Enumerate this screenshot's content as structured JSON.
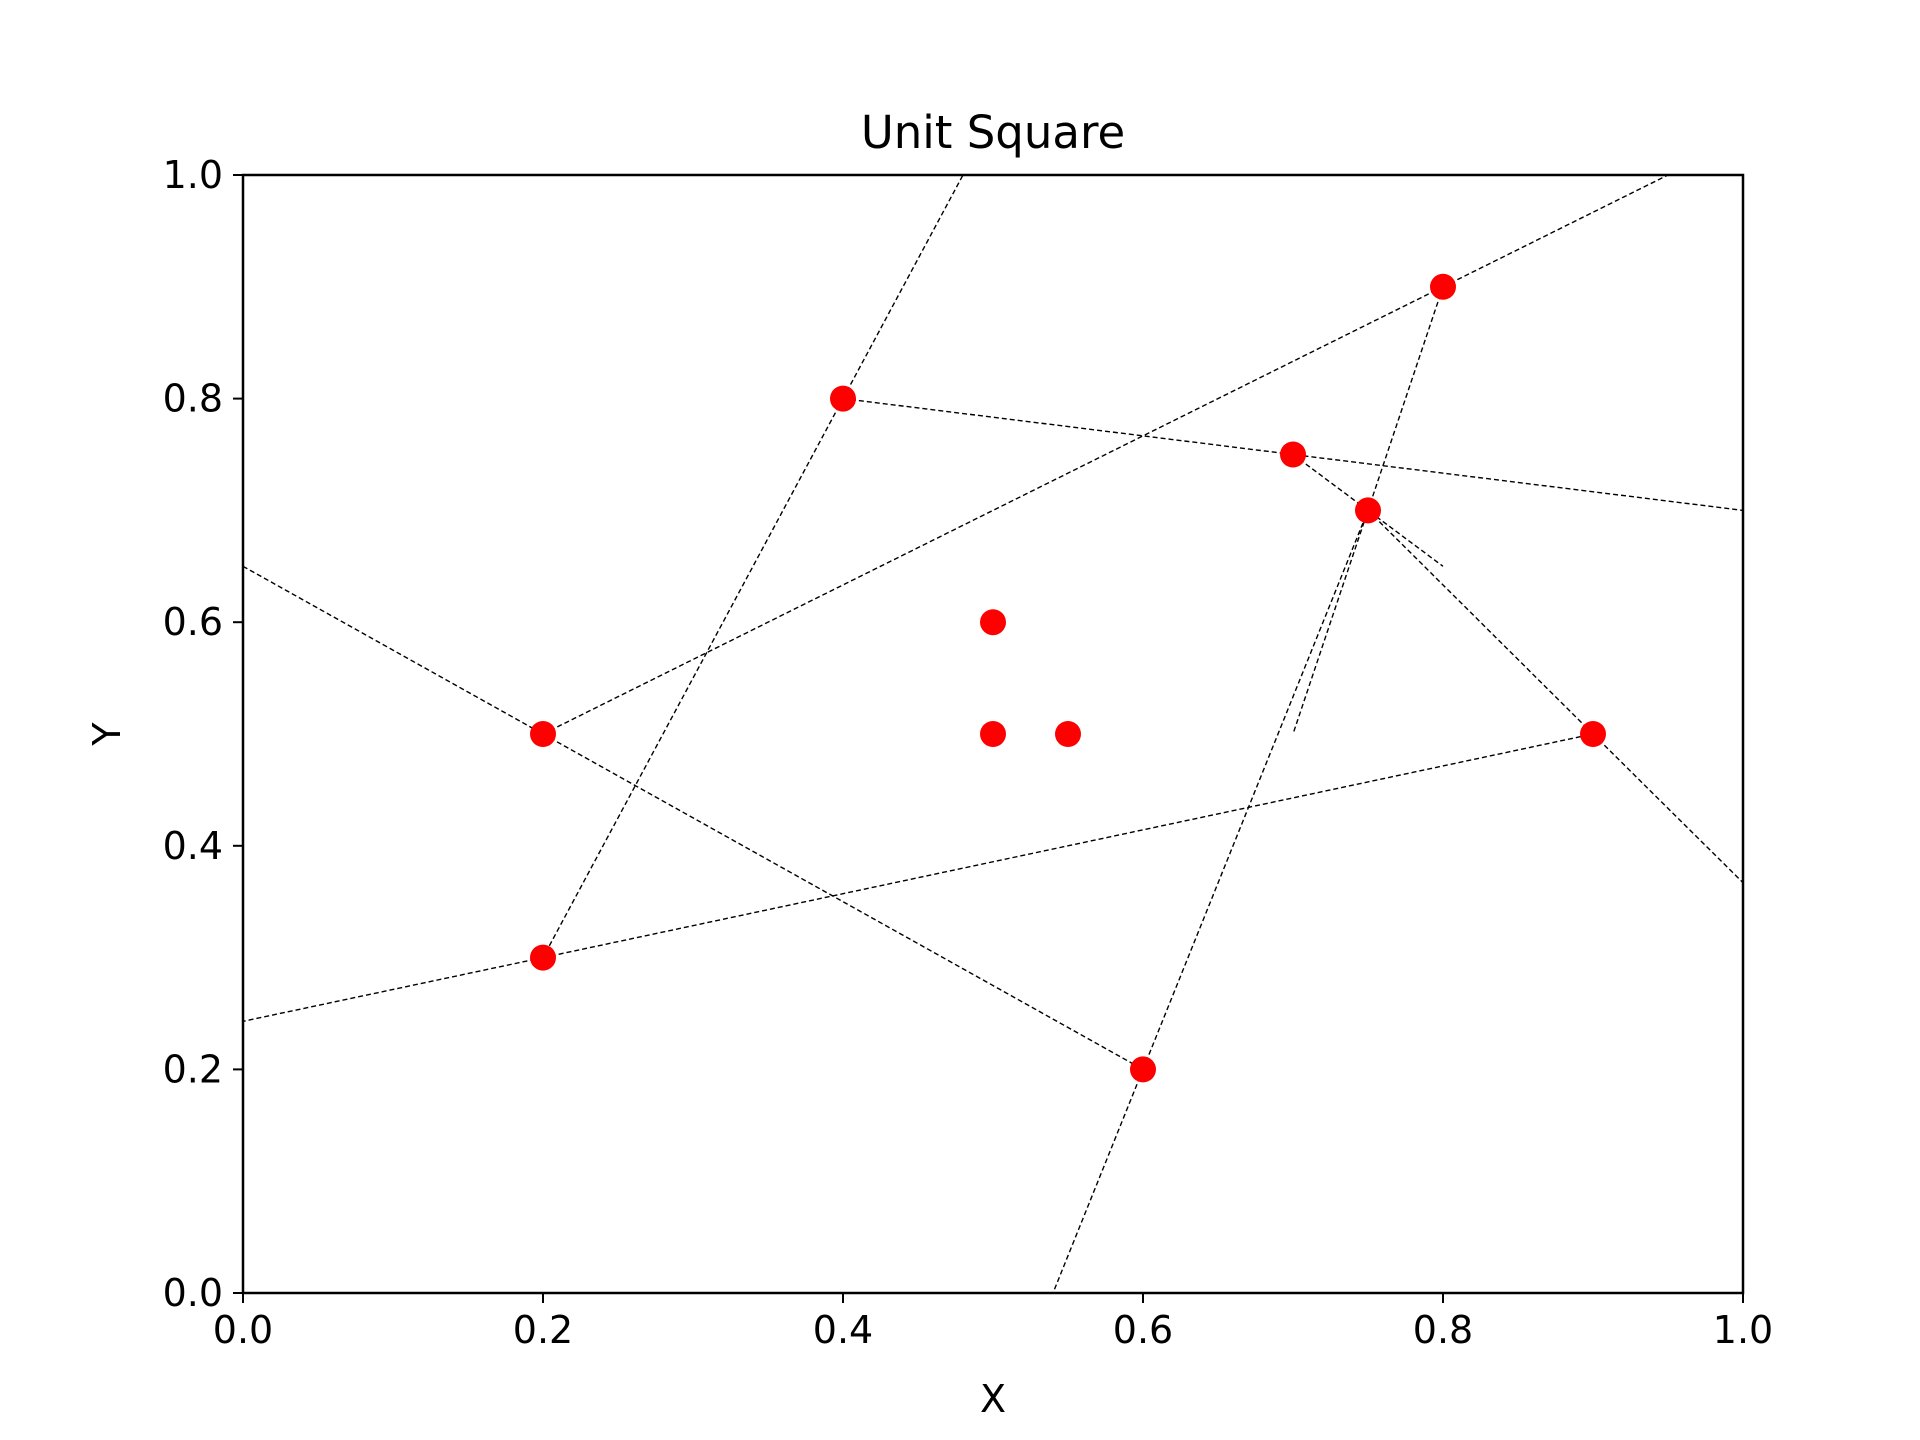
{
  "chart_data": {
    "type": "scatter",
    "title": "Unit Square",
    "xlabel": "X",
    "ylabel": "Y",
    "xlim": [
      0.0,
      1.0
    ],
    "ylim": [
      0.0,
      1.0
    ],
    "xticks": [
      "0.0",
      "0.2",
      "0.4",
      "0.6",
      "0.8",
      "1.0"
    ],
    "yticks": [
      "0.0",
      "0.2",
      "0.4",
      "0.6",
      "0.8",
      "1.0"
    ],
    "grid": false,
    "point_color": "#ff0000",
    "line_color": "#000000",
    "points": [
      {
        "x": 0.2,
        "y": 0.5
      },
      {
        "x": 0.2,
        "y": 0.3
      },
      {
        "x": 0.4,
        "y": 0.8
      },
      {
        "x": 0.5,
        "y": 0.6
      },
      {
        "x": 0.5,
        "y": 0.5
      },
      {
        "x": 0.55,
        "y": 0.5
      },
      {
        "x": 0.6,
        "y": 0.2
      },
      {
        "x": 0.7,
        "y": 0.75
      },
      {
        "x": 0.75,
        "y": 0.7
      },
      {
        "x": 0.8,
        "y": 0.9
      },
      {
        "x": 0.9,
        "y": 0.5
      }
    ],
    "dashed_lines": [
      {
        "x1": 0.4,
        "y1": 0.8,
        "x2": 0.48,
        "y2": 1.0
      },
      {
        "x1": 0.4,
        "y1": 0.8,
        "x2": 0.2,
        "y2": 0.3
      },
      {
        "x1": 0.2,
        "y1": 0.3,
        "x2": 0.0,
        "y2": 0.243
      },
      {
        "x1": 0.2,
        "y1": 0.3,
        "x2": 0.9,
        "y2": 0.5
      },
      {
        "x1": 0.4,
        "y1": 0.8,
        "x2": 1.0,
        "y2": 0.7
      },
      {
        "x1": 0.0,
        "y1": 0.65,
        "x2": 0.2,
        "y2": 0.5
      },
      {
        "x1": 0.2,
        "y1": 0.5,
        "x2": 0.6,
        "y2": 0.2
      },
      {
        "x1": 0.2,
        "y1": 0.5,
        "x2": 0.8,
        "y2": 0.9
      },
      {
        "x1": 0.8,
        "y1": 0.9,
        "x2": 0.95,
        "y2": 1.0
      },
      {
        "x1": 0.6,
        "y1": 0.2,
        "x2": 0.54,
        "y2": 0.0
      },
      {
        "x1": 0.6,
        "y1": 0.2,
        "x2": 0.75,
        "y2": 0.7
      },
      {
        "x1": 0.8,
        "y1": 0.9,
        "x2": 0.7,
        "y2": 0.5
      },
      {
        "x1": 0.7,
        "y1": 0.75,
        "x2": 0.8,
        "y2": 0.65
      },
      {
        "x1": 0.75,
        "y1": 0.7,
        "x2": 0.9,
        "y2": 0.5
      },
      {
        "x1": 0.9,
        "y1": 0.5,
        "x2": 1.0,
        "y2": 0.367
      }
    ]
  }
}
